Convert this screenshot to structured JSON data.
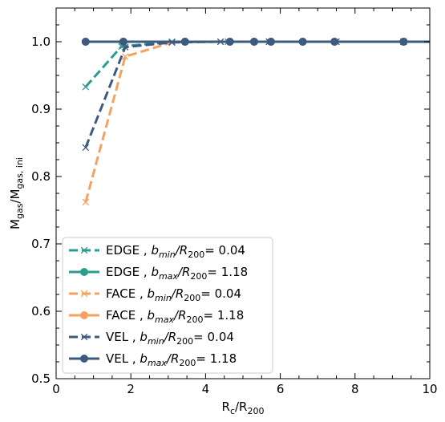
{
  "chart_data": {
    "type": "line",
    "xlabel": "R_c/R_200",
    "ylabel": "M_gas/M_gas,ini",
    "xlim": [
      0,
      10
    ],
    "ylim": [
      0.5,
      1.05
    ],
    "xticks": [
      "0",
      "2",
      "4",
      "6",
      "8",
      "10"
    ],
    "yticks": [
      "0.5",
      "0.6",
      "0.7",
      "0.8",
      "0.9",
      "1.0"
    ],
    "legend_position": "lower-left",
    "series": [
      {
        "name": "EDGE , b_min/R_200= 0.04",
        "label_prefix": "EDGE ,",
        "label_sub": "min",
        "label_value": "0.04",
        "color": "#2a9d8f",
        "dash": true,
        "marker": "x",
        "x": [
          0.79,
          1.75,
          3.1,
          4.6,
          5.7,
          7.5,
          9.3,
          10.0
        ],
        "y": [
          0.933,
          0.993,
          1.0,
          1.0,
          1.0,
          1.0,
          1.0,
          1.0
        ]
      },
      {
        "name": "EDGE , b_max/R_200= 1.18",
        "label_prefix": "EDGE ,",
        "label_sub": "max",
        "label_value": "1.18",
        "color": "#2a9d8f",
        "dash": false,
        "marker": "o",
        "x": [
          0.79,
          1.8,
          3.45,
          4.65,
          5.3,
          5.75,
          6.6,
          7.45,
          9.3
        ],
        "y": [
          1.0,
          1.0,
          1.0,
          1.0,
          1.0,
          1.0,
          1.0,
          1.0,
          1.0
        ]
      },
      {
        "name": "FACE , b_min/R_200= 0.04",
        "label_prefix": "FACE ,",
        "label_sub": "min",
        "label_value": "0.04",
        "color": "#f4a261",
        "dash": true,
        "marker": "x",
        "x": [
          0.79,
          1.85,
          3.1,
          4.4,
          5.7,
          7.5,
          9.3,
          10.0
        ],
        "y": [
          0.762,
          0.978,
          0.999,
          1.0,
          1.0,
          1.0,
          1.0,
          1.0
        ]
      },
      {
        "name": "FACE , b_max/R_200= 1.18",
        "label_prefix": "FACE ,",
        "label_sub": "max",
        "label_value": "1.18",
        "color": "#f4a261",
        "dash": false,
        "marker": "o",
        "x": [
          0.79,
          1.8,
          3.45,
          4.65,
          5.3,
          5.75,
          6.6,
          7.45,
          9.3
        ],
        "y": [
          1.0,
          1.0,
          1.0,
          1.0,
          1.0,
          1.0,
          1.0,
          1.0,
          1.0
        ]
      },
      {
        "name": "VEL , b_min/R_200= 0.04",
        "label_prefix": "VEL  ,",
        "label_sub": "min",
        "label_value": "0.04",
        "color": "#3d5a80",
        "dash": true,
        "marker": "x",
        "x": [
          0.79,
          1.85,
          3.1,
          4.4,
          5.7,
          7.5,
          9.3,
          10.0
        ],
        "y": [
          0.843,
          0.992,
          0.999,
          1.0,
          1.0,
          1.0,
          1.0,
          1.0
        ]
      },
      {
        "name": "VEL , b_max/R_200= 1.18",
        "label_prefix": "VEL  ,",
        "label_sub": "max",
        "label_value": "1.18",
        "color": "#3d5a80",
        "dash": false,
        "marker": "o",
        "x": [
          0.79,
          1.8,
          3.45,
          4.65,
          5.3,
          5.75,
          6.6,
          7.45,
          9.3,
          10.0
        ],
        "y": [
          1.0,
          1.0,
          1.0,
          1.0,
          1.0,
          1.0,
          1.0,
          1.0,
          1.0,
          1.0
        ]
      }
    ]
  }
}
